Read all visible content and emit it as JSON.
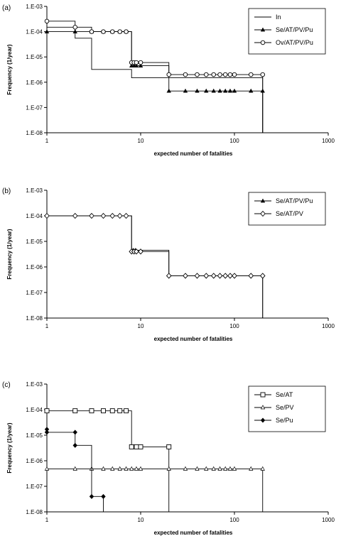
{
  "chart_data": [
    {
      "panel_label": "(a)",
      "type": "line",
      "step": true,
      "xscale": "log",
      "yscale": "log",
      "xlim": [
        1,
        1000
      ],
      "ylim": [
        1e-08,
        0.001
      ],
      "xticks": [
        1,
        10,
        100,
        1000
      ],
      "xtick_labels": [
        "1",
        "10",
        "100",
        "1000"
      ],
      "yticks": [
        1e-08,
        1e-07,
        1e-06,
        1e-05,
        0.0001,
        0.001
      ],
      "ytick_labels": [
        "1.E-08",
        "1.E-07",
        "1.E-06",
        "1.E-05",
        "1.E-04",
        "1.E-03"
      ],
      "xlabel": "expected number of fatalities",
      "ylabel": "Frequency (1/year)",
      "legend_position": "top-right",
      "series": [
        {
          "name": "In",
          "marker": "none",
          "x": [
            1,
            2,
            3,
            8,
            200
          ],
          "y": [
            0.00015,
            5.5e-05,
            3.2e-06,
            1.5e-06,
            1.5e-06
          ],
          "marker_x": []
        },
        {
          "name": "Se/AT/PV/Pu",
          "marker": "triangle",
          "x": [
            1,
            8,
            20,
            200
          ],
          "y": [
            0.0001,
            4.5e-06,
            4.5e-07,
            4.5e-07
          ],
          "marker_x": [
            1,
            2,
            3,
            4,
            5,
            6,
            7,
            8,
            8.5,
            9,
            10,
            20,
            30,
            40,
            50,
            60,
            70,
            80,
            90,
            100,
            150,
            200
          ]
        },
        {
          "name": "Ov/AT/PV/Pu",
          "marker": "circle",
          "x": [
            1,
            2,
            3,
            8,
            20,
            200
          ],
          "y": [
            0.00026,
            0.00015,
            0.0001,
            6e-06,
            2e-06,
            2e-06
          ],
          "marker_x": [
            1,
            2,
            3,
            4,
            5,
            6,
            7,
            8,
            8.5,
            9,
            10,
            20,
            30,
            40,
            50,
            60,
            70,
            80,
            90,
            100,
            150,
            200
          ]
        }
      ]
    },
    {
      "panel_label": "(b)",
      "type": "line",
      "step": true,
      "xscale": "log",
      "yscale": "log",
      "xlim": [
        1,
        1000
      ],
      "ylim": [
        1e-08,
        0.001
      ],
      "xticks": [
        1,
        10,
        100,
        1000
      ],
      "xtick_labels": [
        "1",
        "10",
        "100",
        "1000"
      ],
      "yticks": [
        1e-08,
        1e-07,
        1e-06,
        1e-05,
        0.0001,
        0.001
      ],
      "ytick_labels": [
        "1.E-08",
        "1.E-07",
        "1.E-06",
        "1.E-05",
        "1.E-04",
        "1.E-03"
      ],
      "xlabel": "expected number of fatalities",
      "ylabel": "Frequency (1/year)",
      "legend_position": "top-right",
      "series": [
        {
          "name": "Se/AT/PV/Pu",
          "marker": "triangle",
          "x": [
            1,
            8,
            20,
            200
          ],
          "y": [
            0.0001,
            4.5e-06,
            4.5e-07,
            4.5e-07
          ],
          "marker_x": [
            8.3,
            8.8
          ]
        },
        {
          "name": "Se/AT/PV",
          "marker": "diamond",
          "x": [
            1,
            8,
            20,
            200
          ],
          "y": [
            0.0001,
            4e-06,
            4.5e-07,
            4.5e-07
          ],
          "marker_x": [
            1,
            2,
            3,
            4,
            5,
            6,
            7,
            8,
            8.5,
            9,
            10,
            20,
            30,
            40,
            50,
            60,
            70,
            80,
            90,
            100,
            150,
            200
          ]
        }
      ]
    },
    {
      "panel_label": "(c)",
      "type": "line",
      "step": true,
      "xscale": "log",
      "yscale": "log",
      "xlim": [
        1,
        1000
      ],
      "ylim": [
        1e-08,
        0.001
      ],
      "xticks": [
        1,
        10,
        100,
        1000
      ],
      "xtick_labels": [
        "1",
        "10",
        "100",
        "1000"
      ],
      "yticks": [
        1e-08,
        1e-07,
        1e-06,
        1e-05,
        0.0001,
        0.001
      ],
      "ytick_labels": [
        "1.E-08",
        "1.E-07",
        "1.E-06",
        "1.E-05",
        "1.E-04",
        "1.E-03"
      ],
      "xlabel": "expected number of fatalities",
      "ylabel": "Frequency (1/year)",
      "legend_position": "top-right",
      "series": [
        {
          "name": "Se/AT",
          "marker": "square",
          "x": [
            1,
            8,
            20
          ],
          "y": [
            9e-05,
            3.5e-06,
            3.5e-06
          ],
          "marker_x": [
            1,
            2,
            3,
            4,
            5,
            6,
            7,
            8,
            9,
            10,
            20
          ]
        },
        {
          "name": "Se/PV",
          "marker": "triangle-small",
          "x": [
            1,
            200
          ],
          "y": [
            4.8e-07,
            4.8e-07
          ],
          "marker_x": [
            1,
            2,
            3,
            4,
            5,
            6,
            7,
            8,
            9,
            10,
            20,
            30,
            40,
            50,
            60,
            70,
            80,
            90,
            100,
            150,
            200
          ]
        },
        {
          "name": "Se/Pu",
          "marker": "diamond-filled",
          "x": [
            1,
            2,
            3,
            4
          ],
          "y": [
            1.3e-05,
            4e-06,
            4e-08,
            4e-08
          ],
          "marker_x": [
            1,
            2,
            3,
            4
          ],
          "extra_points": [
            [
              1,
              1.7e-05
            ],
            [
              2,
              1.3e-05
            ]
          ]
        }
      ]
    }
  ]
}
